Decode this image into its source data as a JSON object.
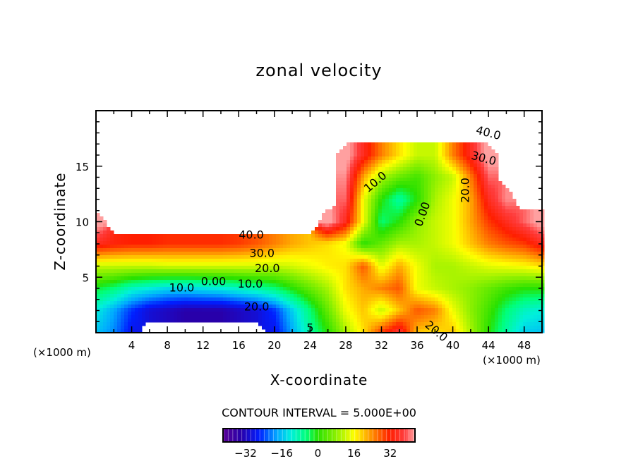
{
  "chart_data": {
    "type": "heatmap",
    "title": "zonal velocity",
    "xlabel": "X-coordinate",
    "ylabel": "Z-coordinate",
    "x_unit": "(×1000 m)",
    "xlim": [
      0,
      50
    ],
    "ylim": [
      0,
      20
    ],
    "xticks": [
      "4",
      "8",
      "12",
      "16",
      "20",
      "24",
      "28",
      "32",
      "36",
      "40",
      "44",
      "48"
    ],
    "xtick_values": [
      4,
      8,
      12,
      16,
      20,
      24,
      28,
      32,
      36,
      40,
      44,
      48
    ],
    "yticks": [
      "5",
      "10",
      "15"
    ],
    "ytick_values": [
      5,
      10,
      15
    ],
    "contour_interval": "CONTOUR INTERVAL = 5.000E+00",
    "colorbar": {
      "range": [
        -42,
        43
      ],
      "ticks": [
        "−32",
        "−16",
        "0",
        "16",
        "32"
      ],
      "tick_values": [
        -32,
        -16,
        0,
        16,
        32
      ]
    },
    "grid_x": [
      0,
      2,
      4,
      6,
      8,
      10,
      12,
      14,
      16,
      18,
      20,
      22,
      24,
      26,
      28,
      30,
      32,
      34,
      36,
      38,
      40,
      42,
      44,
      46,
      48,
      50
    ],
    "grid_z": [
      0,
      2,
      4,
      6,
      8,
      10,
      12,
      14,
      16,
      18,
      20
    ],
    "values": [
      [
        -16,
        -20,
        -28,
        null,
        null,
        null,
        null,
        null,
        null,
        null,
        -28,
        -18,
        -8,
        0,
        10,
        18,
        30,
        38,
        20,
        18,
        20,
        10,
        0,
        -8,
        -15,
        -16
      ],
      [
        -12,
        -18,
        -25,
        -30,
        -32,
        -34,
        -34,
        -34,
        -32,
        -30,
        -25,
        -15,
        -5,
        5,
        15,
        20,
        12,
        20,
        28,
        25,
        15,
        8,
        2,
        -5,
        -10,
        -12
      ],
      [
        -2,
        -5,
        -10,
        -12,
        -14,
        -14,
        -13,
        -12,
        -10,
        -8,
        -5,
        0,
        5,
        10,
        18,
        22,
        25,
        28,
        15,
        12,
        10,
        8,
        5,
        2,
        0,
        0
      ],
      [
        12,
        12,
        12,
        12,
        13,
        13,
        13,
        13,
        13,
        13,
        12,
        13,
        15,
        17,
        18,
        28,
        14,
        22,
        15,
        10,
        10,
        12,
        14,
        15,
        16,
        18
      ],
      [
        35,
        33,
        32,
        32,
        31,
        31,
        31,
        31,
        30,
        28,
        25,
        22,
        20,
        18,
        15,
        0,
        5,
        10,
        10,
        12,
        15,
        20,
        25,
        28,
        30,
        35
      ],
      [
        45,
        null,
        null,
        null,
        null,
        null,
        null,
        null,
        null,
        null,
        null,
        null,
        null,
        45,
        35,
        15,
        -5,
        0,
        8,
        12,
        15,
        22,
        30,
        35,
        40,
        45
      ],
      [
        null,
        null,
        null,
        null,
        null,
        null,
        null,
        null,
        null,
        null,
        null,
        null,
        null,
        null,
        40,
        15,
        0,
        -8,
        0,
        10,
        15,
        22,
        35,
        42,
        null,
        null
      ],
      [
        null,
        null,
        null,
        null,
        null,
        null,
        null,
        null,
        null,
        null,
        null,
        null,
        null,
        null,
        42,
        22,
        10,
        5,
        2,
        8,
        12,
        25,
        40,
        null,
        null,
        null
      ],
      [
        null,
        null,
        null,
        null,
        null,
        null,
        null,
        null,
        null,
        null,
        null,
        null,
        null,
        null,
        45,
        35,
        25,
        18,
        12,
        12,
        25,
        35,
        45,
        null,
        null,
        null
      ],
      [
        null,
        null,
        null,
        null,
        null,
        null,
        null,
        null,
        null,
        null,
        null,
        null,
        null,
        null,
        null,
        null,
        null,
        null,
        null,
        null,
        null,
        null,
        null,
        null,
        null,
        null
      ],
      [
        null,
        null,
        null,
        null,
        null,
        null,
        null,
        null,
        null,
        null,
        null,
        null,
        null,
        null,
        null,
        null,
        null,
        null,
        null,
        null,
        null,
        null,
        null,
        null,
        null,
        null
      ]
    ],
    "contour_labels": [
      {
        "text": "40.0",
        "x": 16.0,
        "z": 8.1
      },
      {
        "text": "30.0",
        "x": 17.2,
        "z": 6.7
      },
      {
        "text": "20.0",
        "x": 17.8,
        "z": 5.7
      },
      {
        "text": "10.0",
        "x": 15.4,
        "z": 4.9
      },
      {
        "text": "0.00",
        "x": 12.4,
        "z": 4.3
      },
      {
        "text": "10.0",
        "x": 8.2,
        "z": 3.7
      },
      {
        "text": "20.0",
        "x": 16.6,
        "z": 2.5
      },
      {
        "text": "5",
        "x": 23.6,
        "z": 0.1
      },
      {
        "text": "10.0",
        "x": 30.5,
        "z": 12.6
      },
      {
        "text": "0.00",
        "x": 36.5,
        "z": 9.5
      },
      {
        "text": "20.0",
        "x": 41.8,
        "z": 11.7
      },
      {
        "text": "40.0",
        "x": 42.2,
        "z": 17.2
      },
      {
        "text": "30.0",
        "x": 42.0,
        "z": 16.3
      },
      {
        "text": "20.0",
        "x": 36.8,
        "z": 0.6
      }
    ]
  }
}
